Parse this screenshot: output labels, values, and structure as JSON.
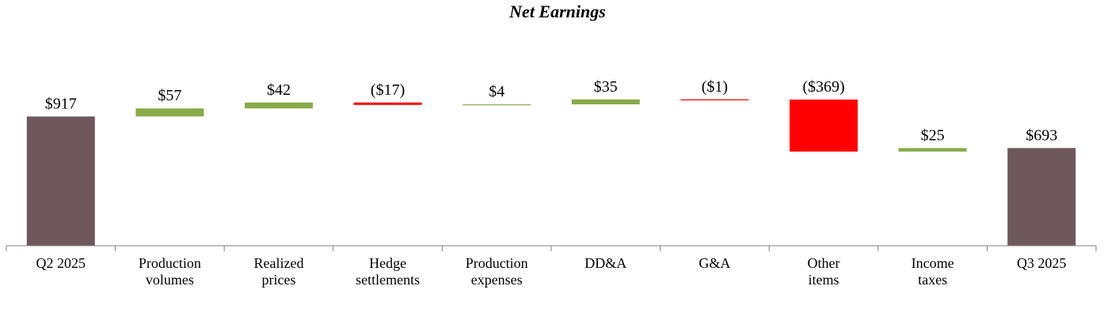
{
  "chart_data": {
    "type": "waterfall",
    "title": "Net Earnings",
    "categories": [
      [
        "Q2 2025"
      ],
      [
        "Production",
        "volumes"
      ],
      [
        "Realized",
        "prices"
      ],
      [
        "Hedge",
        "settlements"
      ],
      [
        "Production",
        "expenses"
      ],
      [
        "DD&A"
      ],
      [
        "G&A"
      ],
      [
        "Other",
        "items"
      ],
      [
        "Income",
        "taxes"
      ],
      [
        "Q3 2025"
      ]
    ],
    "values": [
      917,
      57,
      42,
      -17,
      4,
      35,
      -1,
      -369,
      25,
      693
    ],
    "labels": [
      "$917",
      "$57",
      "$42",
      "($17)",
      "$4",
      "$35",
      "($1)",
      "($369)",
      "$25",
      "$693"
    ],
    "kinds": [
      "total",
      "delta",
      "delta",
      "delta",
      "delta",
      "delta",
      "delta",
      "delta",
      "delta",
      "total"
    ],
    "xlabel": "",
    "ylabel": "",
    "ylim": [
      0,
      1000
    ],
    "grid": false
  },
  "colors": {
    "total": "#6e585e",
    "increase": "#89aa4a",
    "decrease": "#ff0000",
    "axis": "#7f7f7f"
  }
}
